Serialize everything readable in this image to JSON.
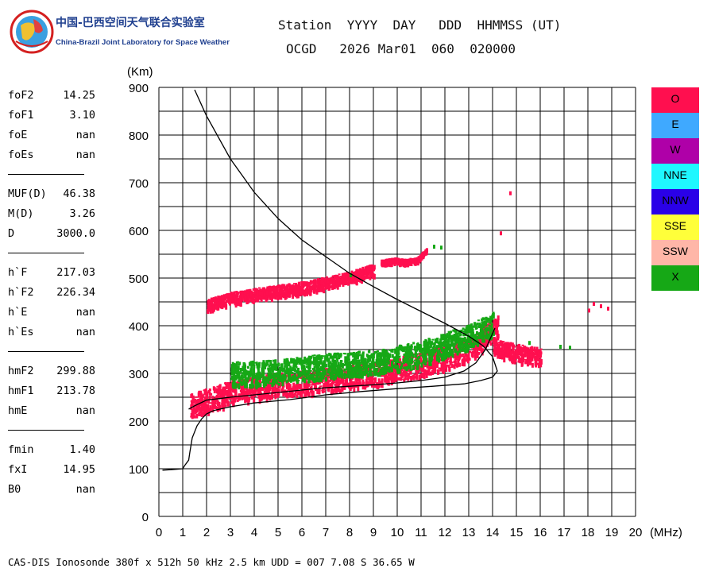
{
  "logo": {
    "name_cn": "中国-巴西空间天气联合实验室",
    "name_en": "China-Brazil Joint Laboratory for Space Weather"
  },
  "header": {
    "line1": "Station  YYYY  DAY   DDD  HHMMSS (UT)",
    "line2": "OCGD   2026 Mar01  060  020000"
  },
  "params": {
    "group1": [
      {
        "label": "foF2",
        "value": "14.25"
      },
      {
        "label": "foF1",
        "value": "3.10"
      },
      {
        "label": "foE",
        "value": "nan"
      },
      {
        "label": "foEs",
        "value": "nan"
      }
    ],
    "group2": [
      {
        "label": "MUF(D)",
        "value": "46.38"
      },
      {
        "label": "M(D)",
        "value": "3.26"
      },
      {
        "label": "D",
        "value": "3000.0"
      }
    ],
    "group3": [
      {
        "label": "h`F",
        "value": "217.03"
      },
      {
        "label": "h`F2",
        "value": "226.34"
      },
      {
        "label": "h`E",
        "value": "nan"
      },
      {
        "label": "h`Es",
        "value": "nan"
      }
    ],
    "group4": [
      {
        "label": "hmF2",
        "value": "299.88"
      },
      {
        "label": "hmF1",
        "value": "213.78"
      },
      {
        "label": "hmE",
        "value": "nan"
      }
    ],
    "group5": [
      {
        "label": "fmin",
        "value": "1.40"
      },
      {
        "label": "fxI",
        "value": "14.95"
      },
      {
        "label": "B0",
        "value": "nan"
      }
    ]
  },
  "legend": [
    {
      "label": "O",
      "color": "#ff0f4f"
    },
    {
      "label": "E",
      "color": "#3fa9ff"
    },
    {
      "label": "W",
      "color": "#af00a8"
    },
    {
      "label": "NNE",
      "color": "#1ff7ff"
    },
    {
      "label": "NNW",
      "color": "#2a00e8"
    },
    {
      "label": "SSE",
      "color": "#ffff3a"
    },
    {
      "label": "SSW",
      "color": "#ffb6a8"
    },
    {
      "label": "X",
      "color": "#16a816"
    }
  ],
  "footer": "CAS-DIS Ionosonde 380f x 512h 50 kHz 2.5 km UDD = 007 7.08 S 36.65 W",
  "chart_data": {
    "type": "scatter",
    "ylabel": "(Km)",
    "xlabel": "(MHz)",
    "xlim": [
      0,
      20
    ],
    "ylim": [
      0,
      900
    ],
    "xticks": [
      "0",
      "1",
      "2",
      "3",
      "4",
      "5",
      "6",
      "7",
      "8",
      "9",
      "10",
      "11",
      "12",
      "13",
      "14",
      "15",
      "16",
      "17",
      "18",
      "19",
      "20"
    ],
    "yticks": [
      "0",
      "100",
      "200",
      "300",
      "400",
      "500",
      "600",
      "700",
      "800",
      "900"
    ],
    "grid": true,
    "series": [
      {
        "name": "O",
        "color": "#ff0f4f",
        "traces": [
          {
            "x": [
              1.3,
              2.0,
              3.0,
              4.0,
              5.0,
              6.0,
              7.0,
              8.0,
              9.0,
              10.0,
              11.0,
              12.0,
              12.8,
              13.3,
              13.8,
              14.2
            ],
            "y": [
              235,
              245,
              262,
              270,
              278,
              282,
              288,
              295,
              302,
              310,
              322,
              335,
              350,
              365,
              385,
              400
            ],
            "spread": 25
          },
          {
            "x": [
              2.0,
              3.0,
              4.0,
              5.0,
              6.0,
              7.0,
              8.0,
              9.0
            ],
            "y": [
              445,
              460,
              468,
              475,
              482,
              492,
              503,
              520
            ],
            "spread": 12
          },
          {
            "x": [
              14.0,
              14.5,
              15.0,
              15.5,
              16.0
            ],
            "y": [
              360,
              350,
              345,
              340,
              338
            ],
            "spread": 18
          },
          {
            "x": [
              9.3,
              9.9,
              10.2,
              10.8,
              11.2
            ],
            "y": [
              535,
              540,
              537,
              540,
              560
            ],
            "spread": 4
          }
        ],
        "points": [
          [
            14.3,
            598
          ],
          [
            14.7,
            682
          ],
          [
            18.2,
            450
          ],
          [
            18.5,
            445
          ],
          [
            18.8,
            440
          ],
          [
            18.0,
            436
          ]
        ]
      },
      {
        "name": "X",
        "color": "#16a816",
        "traces": [
          {
            "x": [
              3.0,
              5.0,
              7.0,
              9.0,
              11.0,
              13.0,
              14.0
            ],
            "y": [
              300,
              305,
              318,
              325,
              345,
              380,
              405
            ],
            "spread": 25
          }
        ],
        "points": [
          [
            11.5,
            570
          ],
          [
            11.8,
            568
          ],
          [
            8.0,
            510
          ],
          [
            15.5,
            368
          ],
          [
            17.2,
            358
          ],
          [
            16.8,
            360
          ]
        ]
      }
    ],
    "lines": [
      {
        "name": "profile-curve",
        "x": [
          1.5,
          2.0,
          3.0,
          4.0,
          5.0,
          6.0,
          7.0,
          8.0,
          9.0,
          10.0,
          11.0,
          12.0,
          13.0,
          13.6,
          14.0,
          14.2,
          14.0,
          13.5,
          12.8,
          11.5,
          10.0,
          8.5,
          7.0,
          5.5,
          4.0,
          3.0,
          2.3,
          2.0,
          1.8,
          1.6,
          1.4,
          1.35,
          1.3,
          1.25,
          1.1,
          1.0,
          0.5,
          0.15
        ],
        "y": [
          895,
          840,
          750,
          680,
          625,
          580,
          545,
          510,
          482,
          455,
          430,
          405,
          378,
          358,
          335,
          305,
          292,
          285,
          278,
          273,
          268,
          262,
          255,
          245,
          238,
          230,
          222,
          215,
          205,
          190,
          165,
          150,
          135,
          118,
          108,
          100,
          98,
          97
        ]
      },
      {
        "name": "trace-curve",
        "x": [
          1.25,
          1.5,
          2.0,
          2.5,
          3.0,
          4.0,
          5.0,
          6.0,
          7.0,
          8.0,
          9.0,
          10.0,
          11.0,
          12.0,
          12.8,
          13.3,
          13.7,
          14.1
        ],
        "y": [
          225,
          232,
          244,
          247,
          250,
          255,
          260,
          265,
          270,
          273,
          276,
          280,
          285,
          292,
          305,
          322,
          350,
          395
        ]
      }
    ]
  }
}
